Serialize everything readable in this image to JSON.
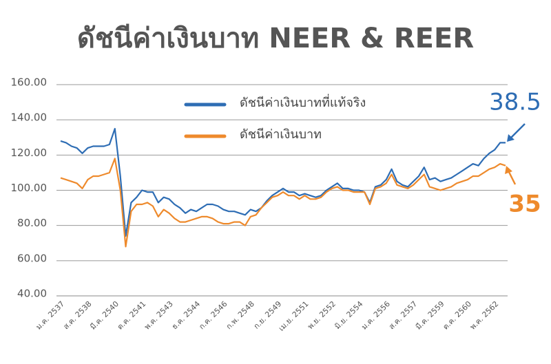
{
  "chart_data": {
    "type": "line",
    "title": "ดัชนีค่าเงินบาท NEER & REER",
    "annotations": [
      "38.5",
      "35"
    ],
    "categories": [
      "ม.ค. 2537",
      null,
      null,
      null,
      null,
      "ส.ค. 2538",
      null,
      null,
      null,
      null,
      "มี.ค. 2540",
      null,
      null,
      null,
      null,
      "ต.ค. 2541",
      null,
      null,
      null,
      null,
      "พ.ค. 2543",
      null,
      null,
      null,
      null,
      "ธ.ค. 2544",
      null,
      null,
      null,
      null,
      "ก.ค. 2546",
      null,
      null,
      null,
      null,
      "ก.พ. 2548",
      null,
      null,
      null,
      null,
      "ก.ย. 2549",
      null,
      null,
      null,
      null,
      "เม.ย. 2551",
      null,
      null,
      null,
      null,
      "พ.ย. 2552",
      null,
      null,
      null,
      null,
      "มิ.ย. 2554",
      null,
      null,
      null,
      null,
      "ม.ค. 2556",
      null,
      null,
      null,
      null,
      "ส.ค. 2557",
      null,
      null,
      null,
      null,
      "มี.ค. 2559",
      null,
      null,
      null,
      null,
      "ต.ค. 2560",
      null,
      null,
      null,
      null,
      "พ.ค. 2562",
      null,
      null
    ],
    "series": [
      {
        "name": "ดัชนีค่าเงินบาทที่แท้จริง",
        "color": "#2e6db4",
        "values": [
          128,
          127,
          125,
          124,
          121,
          124,
          125,
          125,
          125,
          126,
          135,
          108,
          74,
          93,
          96,
          100,
          99,
          99,
          93,
          96,
          95,
          92,
          90,
          87,
          89,
          88,
          90,
          92,
          92,
          91,
          89,
          88,
          88,
          87,
          86,
          89,
          88,
          90,
          94,
          97,
          99,
          101,
          99,
          99,
          97,
          98,
          97,
          96,
          97,
          100,
          102,
          104,
          101,
          101,
          100,
          100,
          99,
          93,
          102,
          103,
          106,
          112,
          105,
          103,
          102,
          105,
          108,
          113,
          106,
          107,
          105,
          106,
          107,
          109,
          111,
          113,
          115,
          114,
          118,
          121,
          123,
          127,
          127
        ]
      },
      {
        "name": "ดัชนีค่าเงินบาท",
        "color": "#ee8a2c",
        "values": [
          107,
          106,
          105,
          104,
          101,
          106,
          108,
          108,
          109,
          110,
          118,
          100,
          68,
          88,
          92,
          92,
          93,
          91,
          85,
          89,
          87,
          84,
          82,
          82,
          83,
          84,
          85,
          85,
          84,
          82,
          81,
          81,
          82,
          82,
          80,
          85,
          86,
          90,
          93,
          96,
          97,
          99,
          97,
          97,
          95,
          97,
          95,
          95,
          96,
          99,
          101,
          102,
          100,
          100,
          99,
          99,
          99,
          92,
          101,
          102,
          104,
          109,
          103,
          102,
          101,
          103,
          106,
          109,
          102,
          101,
          100,
          101,
          102,
          104,
          105,
          106,
          108,
          108,
          110,
          112,
          113,
          115,
          114
        ]
      }
    ],
    "ylim": [
      40,
      160
    ],
    "yticks": [
      {
        "value": 40,
        "label": "40.00"
      },
      {
        "value": 60,
        "label": "60.00"
      },
      {
        "value": 80,
        "label": "80.00"
      },
      {
        "value": 100,
        "label": "100.00"
      },
      {
        "value": 120,
        "label": "120.00"
      },
      {
        "value": 140,
        "label": "140.00"
      },
      {
        "value": 160,
        "label": "160.00"
      }
    ],
    "grid": true
  }
}
